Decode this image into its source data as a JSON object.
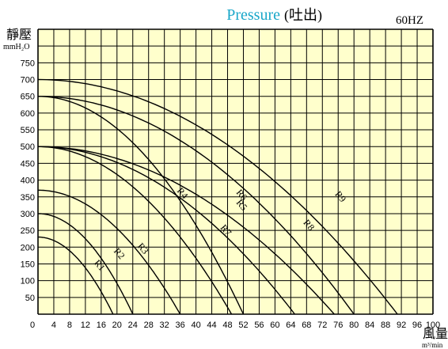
{
  "chart_data": {
    "type": "line",
    "title": "Pressure",
    "title_cjk": "(吐出)",
    "frequency_label": "60HZ",
    "ylabel": "靜壓",
    "yunit": "mmH₂O",
    "xlabel": "風量",
    "xunit": "m³/min",
    "xlim": [
      0,
      100
    ],
    "ylim": [
      0,
      850
    ],
    "x_ticks": [
      0,
      4,
      8,
      12,
      16,
      20,
      24,
      28,
      32,
      36,
      40,
      44,
      48,
      52,
      56,
      60,
      64,
      68,
      72,
      76,
      80,
      84,
      88,
      92,
      96,
      100
    ],
    "y_ticks": [
      50,
      100,
      150,
      200,
      250,
      300,
      350,
      400,
      450,
      500,
      550,
      600,
      650,
      700,
      750
    ],
    "grid": true,
    "colors": {
      "plot_background": "#ffffcc",
      "grid": "#000000",
      "curve": "#000000",
      "title": "#1aa7c9"
    },
    "series": [
      {
        "name": "R1",
        "shutoff_pressure": 230,
        "max_flow": 19,
        "label_at": {
          "x": 15,
          "y": 140
        }
      },
      {
        "name": "R2",
        "shutoff_pressure": 300,
        "max_flow": 24,
        "label_at": {
          "x": 20,
          "y": 175
        }
      },
      {
        "name": "R3",
        "shutoff_pressure": 370,
        "max_flow": 36,
        "label_at": {
          "x": 26,
          "y": 190
        }
      },
      {
        "name": "R4",
        "shutoff_pressure": 500,
        "max_flow": 49,
        "label_at": {
          "x": 36,
          "y": 355
        }
      },
      {
        "name": "R5",
        "shutoff_pressure": 500,
        "max_flow": 65,
        "label_at": {
          "x": 51,
          "y": 320
        }
      },
      {
        "name": "R6",
        "shutoff_pressure": 500,
        "max_flow": 75,
        "label_at": {
          "x": 51,
          "y": 350
        }
      },
      {
        "name": "R7",
        "shutoff_pressure": 650,
        "max_flow": 52,
        "label_at": {
          "x": 47,
          "y": 245
        }
      },
      {
        "name": "R8",
        "shutoff_pressure": 650,
        "max_flow": 80,
        "label_at": {
          "x": 68,
          "y": 260
        }
      },
      {
        "name": "R9",
        "shutoff_pressure": 700,
        "max_flow": 91,
        "label_at": {
          "x": 76,
          "y": 345
        }
      }
    ]
  }
}
